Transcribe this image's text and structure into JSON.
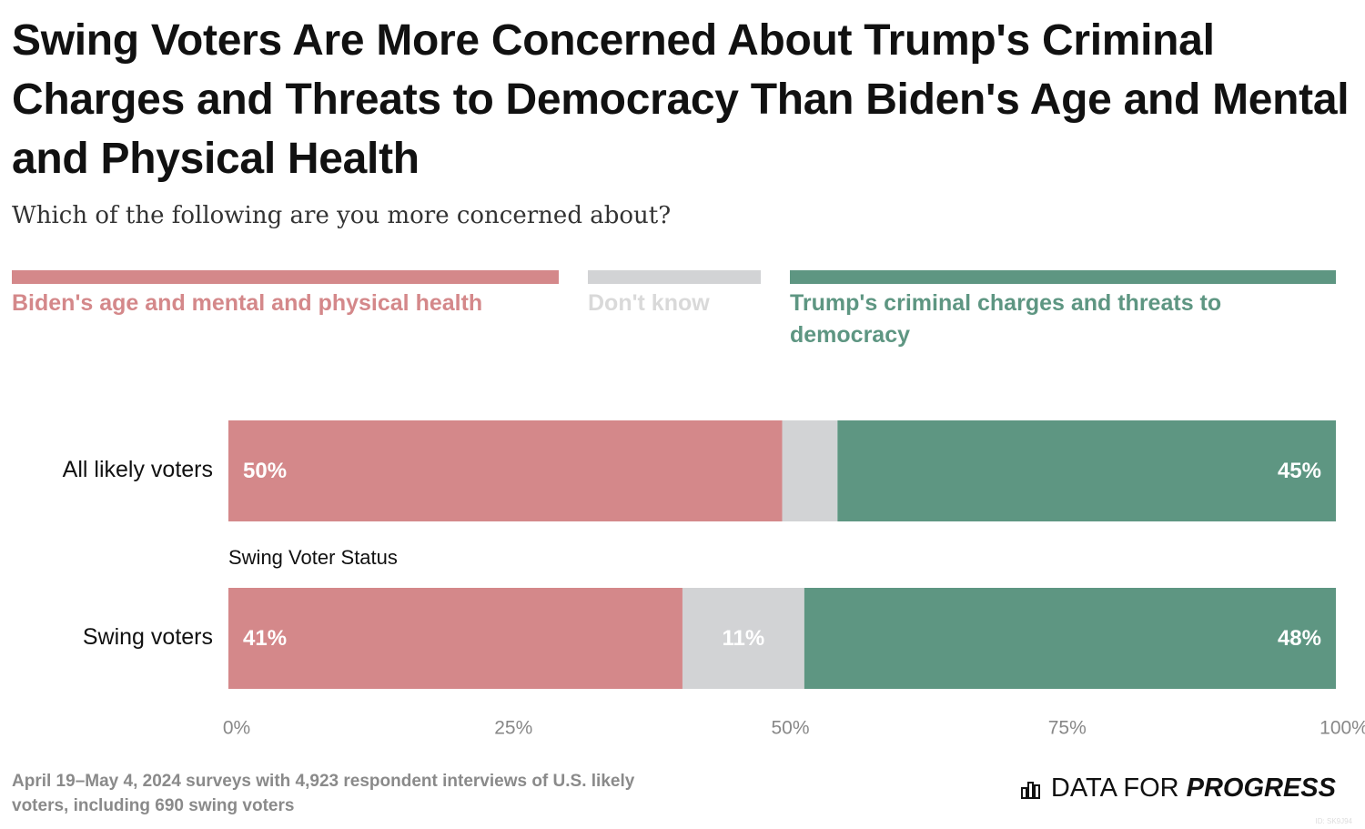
{
  "chart_data": {
    "type": "bar",
    "orientation": "horizontal",
    "stacked": true,
    "title": "Swing Voters Are More Concerned About Trump's Criminal Charges and Threats to Democracy Than Biden's Age and Mental and Physical Health",
    "subtitle": "Which of the following are you more concerned about?",
    "categories": [
      "All likely voters",
      "Swing voters"
    ],
    "group_label": "Swing Voter Status",
    "series": [
      {
        "name": "Biden's age and mental and physical health",
        "color": "#d4888a",
        "values": [
          50,
          41
        ],
        "value_labels": [
          "50%",
          "41%"
        ]
      },
      {
        "name": "Don't know",
        "color": "#d2d3d5",
        "values": [
          5,
          11
        ],
        "value_labels": [
          null,
          "11%"
        ]
      },
      {
        "name": "Trump's criminal charges and threats to democracy",
        "color": "#5e9682",
        "values": [
          45,
          48
        ],
        "value_labels": [
          "45%",
          "48%"
        ]
      }
    ],
    "xlim": [
      0,
      100
    ],
    "xticks": [
      {
        "value": 0,
        "label": "0%"
      },
      {
        "value": 25,
        "label": "25%"
      },
      {
        "value": 50,
        "label": "50%"
      },
      {
        "value": 75,
        "label": "75%"
      },
      {
        "value": 100,
        "label": "100%"
      }
    ],
    "source": "April 19–May 4, 2024 surveys with 4,923 respondent interviews of U.S. likely voters, including 690 swing voters",
    "logo": {
      "prefix": "DATA FOR",
      "emphasis": "PROGRESS"
    },
    "chart_id": "ID: SK9J94"
  }
}
